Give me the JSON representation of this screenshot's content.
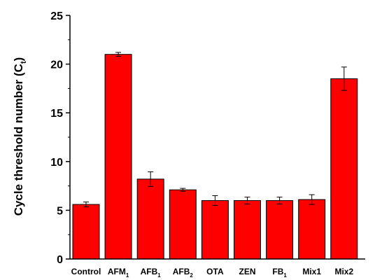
{
  "chart_data": {
    "type": "bar",
    "categories": [
      {
        "main": "Control",
        "sub": ""
      },
      {
        "main": "AFM",
        "sub": "1"
      },
      {
        "main": "AFB",
        "sub": "1"
      },
      {
        "main": "AFB",
        "sub": "2"
      },
      {
        "main": "OTA",
        "sub": ""
      },
      {
        "main": "ZEN",
        "sub": ""
      },
      {
        "main": "FB",
        "sub": "1"
      },
      {
        "main": "Mix1",
        "sub": ""
      },
      {
        "main": "Mix2",
        "sub": ""
      }
    ],
    "values": [
      5.6,
      21.0,
      8.2,
      7.1,
      6.0,
      6.0,
      6.0,
      6.1,
      18.5
    ],
    "errors": [
      0.25,
      0.2,
      0.75,
      0.15,
      0.5,
      0.35,
      0.35,
      0.5,
      1.2
    ],
    "ylabel": {
      "main": "Cycle threshold number (C",
      "sub": "t",
      "end": ")"
    },
    "xlabel": "",
    "ylim": [
      0,
      25
    ],
    "yticks": [
      "0",
      "5",
      "10",
      "15",
      "20",
      "25"
    ],
    "grid": false,
    "colors": {
      "bar": "#ff0000",
      "bar_edge": "#000000",
      "axis": "#000000"
    }
  }
}
